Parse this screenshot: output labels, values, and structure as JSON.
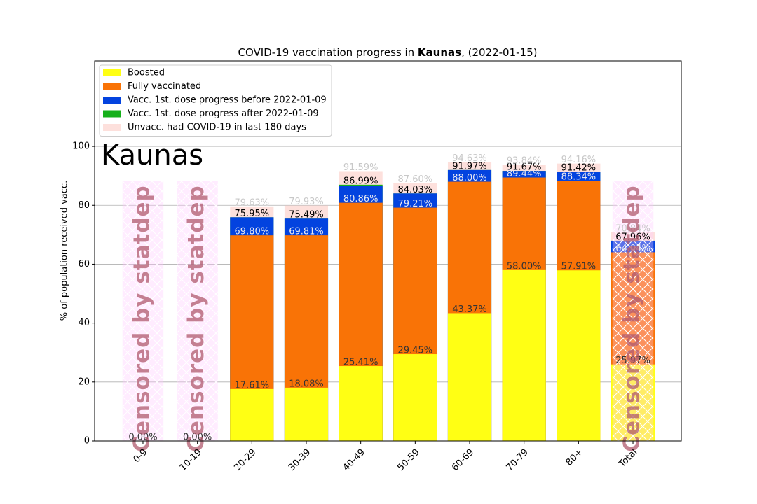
{
  "chart_data": {
    "type": "bar",
    "bar_mode": "overlay",
    "title": [
      "COVID-19 vaccination progress in ",
      "Kaunas",
      ", (2022-01-15)"
    ],
    "annotation": "Kaunas",
    "ylabel": "% of population received vacc.",
    "categories": [
      "0-9",
      "10-19",
      "20-29",
      "30-39",
      "40-49",
      "50-59",
      "60-69",
      "70-79",
      "80+",
      "Total"
    ],
    "series": [
      {
        "name": "Boosted",
        "color": "#ffff14",
        "label_color": "#333333",
        "values": [
          0,
          0,
          17.61,
          18.08,
          25.41,
          29.45,
          43.37,
          58.0,
          57.91,
          25.97
        ],
        "value_labels": [
          "0.00%",
          "0.00%",
          "17.61%",
          "18.08%",
          "25.41%",
          "29.45%",
          "43.37%",
          "58.00%",
          "57.91%",
          "25.97%"
        ]
      },
      {
        "name": "Fully vaccinated",
        "color": "#f97306",
        "label_color": "#e8e8f0",
        "values": [
          null,
          null,
          69.8,
          69.81,
          80.86,
          79.21,
          88.0,
          89.44,
          88.34,
          64.04
        ],
        "value_labels": [
          null,
          null,
          "69.80%",
          "69.81%",
          "80.86%",
          "79.21%",
          "88.00%",
          "89.44%",
          "88.34%",
          "64.04%"
        ]
      },
      {
        "name": "Vacc. 1st. dose progress before 2022-01-09",
        "color": "#0343df",
        "values": [
          null,
          null,
          75.95,
          75.49,
          86.5,
          84.03,
          91.97,
          91.67,
          91.42,
          67.96
        ]
      },
      {
        "name": "Vacc. 1st. dose progress after 2022-01-09",
        "color": "#15b01a",
        "label_color": "#000000",
        "values": [
          null,
          null,
          75.95,
          75.49,
          86.99,
          84.03,
          91.97,
          91.67,
          91.42,
          67.96
        ],
        "value_labels": [
          null,
          null,
          "75.95%",
          "75.49%",
          "86.99%",
          "84.03%",
          "91.97%",
          "91.67%",
          "91.42%",
          "67.96%"
        ]
      },
      {
        "name": "Unvacc. had COVID-19 in last 180 days",
        "color": "#fde0dc",
        "label_color": "#c8c8c8",
        "values": [
          null,
          null,
          79.63,
          79.93,
          91.59,
          87.6,
          94.63,
          93.84,
          94.16,
          70.84
        ],
        "value_labels": [
          null,
          null,
          "79.63%",
          "79.93%",
          "91.59%",
          "87.60%",
          "94.63%",
          "93.84%",
          "94.16%",
          "70.84%"
        ]
      }
    ],
    "censored_label": "Censored by statdep",
    "censored": [
      true,
      true,
      false,
      false,
      false,
      false,
      false,
      false,
      false,
      true
    ],
    "ylim": [
      0,
      129
    ],
    "yticks": [
      0,
      20,
      40,
      60,
      80,
      100
    ],
    "grid": true,
    "legend": "upper left"
  }
}
